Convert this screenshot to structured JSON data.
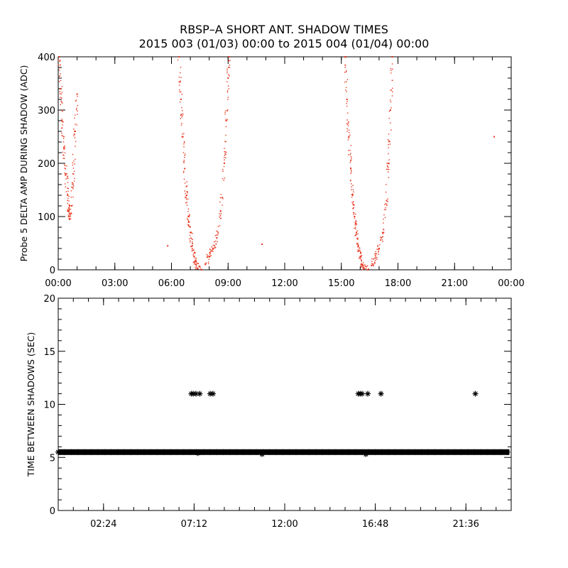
{
  "title": {
    "line1": "RBSP–A SHORT ANT. SHADOW TIMES",
    "line2": "2015 003 (01/03) 00:00 to 2015 004 (01/04) 00:00"
  },
  "colors": {
    "top_points": "#e8321a",
    "bottom_points": "#000000",
    "axes": "#000000"
  },
  "chart_data": [
    {
      "type": "scatter",
      "marker": "dot",
      "ylabel": "Probe 5 DELTA AMP DURING SHADOW (ADC)",
      "xlabel": "",
      "xlim": [
        "00:00",
        "24:00"
      ],
      "ylim": [
        0,
        400
      ],
      "x_tick_labels": [
        "00:00",
        "03:00",
        "06:00",
        "09:00",
        "12:00",
        "15:00",
        "18:00",
        "21:00",
        "00:00"
      ],
      "y_tick_labels": [
        "0",
        "100",
        "200",
        "300",
        "400"
      ],
      "series": [
        {
          "color": "#e8321a",
          "x_unit": "hours",
          "points": [
            [
              0.05,
              400
            ],
            [
              0.12,
              340
            ],
            [
              0.2,
              280
            ],
            [
              0.3,
              230
            ],
            [
              0.4,
              180
            ],
            [
              0.5,
              140
            ],
            [
              0.55,
              110
            ],
            [
              0.6,
              95
            ],
            [
              0.7,
              120
            ],
            [
              0.8,
              180
            ],
            [
              0.9,
              260
            ],
            [
              1.0,
              330
            ],
            [
              6.4,
              400
            ],
            [
              6.5,
              320
            ],
            [
              6.6,
              250
            ],
            [
              6.7,
              190
            ],
            [
              6.8,
              140
            ],
            [
              6.9,
              100
            ],
            [
              7.0,
              70
            ],
            [
              7.1,
              45
            ],
            [
              7.2,
              25
            ],
            [
              7.3,
              10
            ],
            [
              7.4,
              2
            ],
            [
              7.6,
              0
            ],
            [
              7.8,
              10
            ],
            [
              8.0,
              25
            ],
            [
              8.2,
              40
            ],
            [
              8.4,
              60
            ],
            [
              8.6,
              110
            ],
            [
              8.8,
              200
            ],
            [
              8.9,
              280
            ],
            [
              9.0,
              360
            ],
            [
              9.05,
              400
            ],
            [
              5.8,
              45
            ],
            [
              10.8,
              48
            ],
            [
              23.1,
              250
            ],
            [
              15.2,
              400
            ],
            [
              15.3,
              320
            ],
            [
              15.4,
              250
            ],
            [
              15.5,
              190
            ],
            [
              15.6,
              140
            ],
            [
              15.7,
              100
            ],
            [
              15.8,
              70
            ],
            [
              15.9,
              45
            ],
            [
              16.0,
              25
            ],
            [
              16.1,
              10
            ],
            [
              16.2,
              2
            ],
            [
              16.4,
              0
            ],
            [
              16.6,
              8
            ],
            [
              16.8,
              22
            ],
            [
              17.0,
              40
            ],
            [
              17.2,
              70
            ],
            [
              17.4,
              130
            ],
            [
              17.5,
              200
            ],
            [
              17.6,
              300
            ],
            [
              17.7,
              400
            ]
          ]
        }
      ]
    },
    {
      "type": "scatter",
      "marker": "asterisk",
      "ylabel": "TIME BETWEEN SHADOWS (SEC)",
      "xlabel": "",
      "xlim": [
        "00:00",
        "24:00"
      ],
      "ylim": [
        0,
        20
      ],
      "x_tick_labels": [
        "02:24",
        "07:12",
        "12:00",
        "16:48",
        "21:36"
      ],
      "y_tick_labels": [
        "0",
        "5",
        "10",
        "15",
        "20"
      ],
      "series": [
        {
          "color": "#000000",
          "x_unit": "hours",
          "baseline": {
            "x_range": [
              0.0,
              23.9
            ],
            "y": 5.5
          },
          "points": [
            [
              7.05,
              11
            ],
            [
              7.15,
              11
            ],
            [
              7.3,
              11
            ],
            [
              7.5,
              11
            ],
            [
              8.05,
              11
            ],
            [
              8.2,
              11
            ],
            [
              15.9,
              11
            ],
            [
              16.0,
              11
            ],
            [
              16.1,
              11
            ],
            [
              16.4,
              11
            ],
            [
              17.1,
              11
            ],
            [
              22.1,
              11
            ],
            [
              10.8,
              5.3
            ],
            [
              7.4,
              5.4
            ],
            [
              16.3,
              5.3
            ]
          ]
        }
      ]
    }
  ]
}
